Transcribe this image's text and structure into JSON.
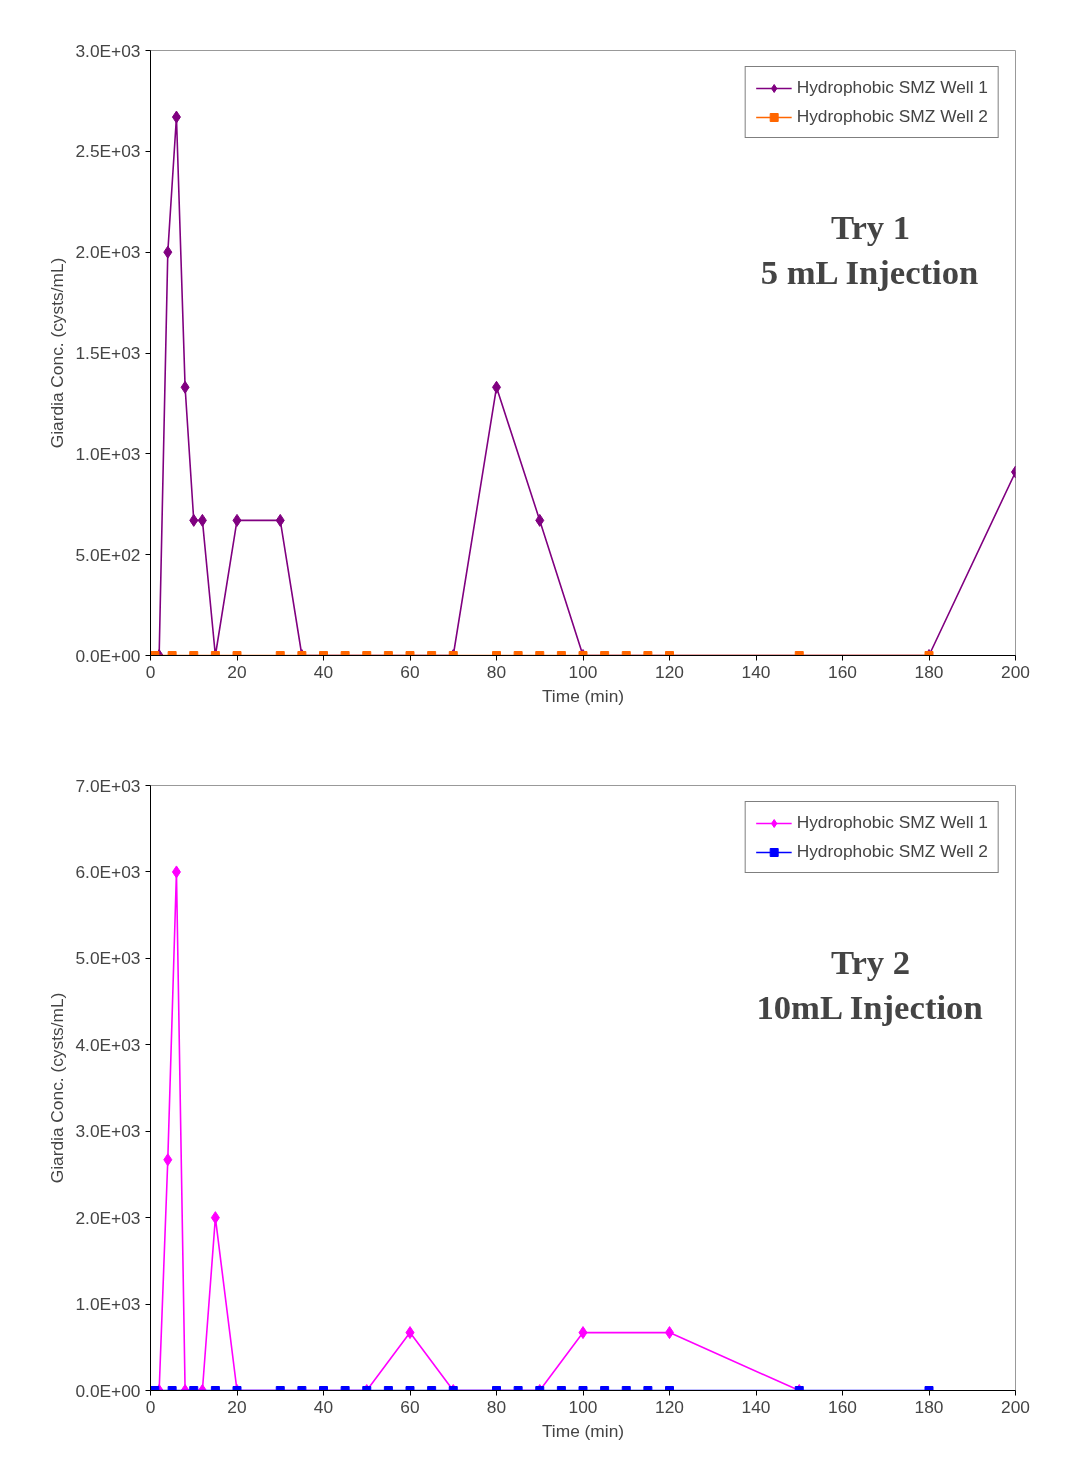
{
  "chart_data": [
    {
      "type": "line",
      "xlabel": "Time (min)",
      "ylabel": "Giardia Conc. (cysts/mL)",
      "annotations": [
        "Try 1",
        "5 mL Injection"
      ],
      "xlim": [
        0,
        200
      ],
      "xticks": [
        0,
        20,
        40,
        60,
        80,
        100,
        120,
        140,
        160,
        180,
        200
      ],
      "ylim": [
        0,
        3000
      ],
      "yticks": [
        {
          "value": 0,
          "label": "0.0E+00"
        },
        {
          "value": 500,
          "label": "5.0E+02"
        },
        {
          "value": 1000,
          "label": "1.0E+03"
        },
        {
          "value": 1500,
          "label": "1.5E+03"
        },
        {
          "value": 2000,
          "label": "2.0E+03"
        },
        {
          "value": 2500,
          "label": "2.5E+03"
        },
        {
          "value": 3000,
          "label": "3.0E+03"
        }
      ],
      "grid": false,
      "legend": "top right",
      "series": [
        {
          "name": "Hydrophobic SMZ Well 1",
          "color": "#800080",
          "marker": "diamond",
          "x": [
            2,
            4,
            6,
            8,
            10,
            12,
            15,
            20,
            30,
            35,
            70,
            80,
            90,
            100,
            180,
            200
          ],
          "values": [
            0,
            2000,
            2670,
            1330,
            670,
            670,
            0,
            670,
            670,
            0,
            0,
            1330,
            670,
            0,
            0,
            910
          ]
        },
        {
          "name": "Hydrophobic SMZ Well 2",
          "color": "#ff6600",
          "marker": "square",
          "x": [
            1,
            5,
            10,
            15,
            20,
            30,
            35,
            40,
            45,
            50,
            55,
            60,
            65,
            70,
            80,
            85,
            90,
            95,
            100,
            105,
            110,
            115,
            120,
            150,
            180
          ],
          "values": [
            0,
            0,
            0,
            0,
            0,
            0,
            0,
            0,
            0,
            0,
            0,
            0,
            0,
            0,
            0,
            0,
            0,
            0,
            0,
            0,
            0,
            0,
            0,
            0,
            0
          ]
        }
      ]
    },
    {
      "type": "line",
      "xlabel": "Time (min)",
      "ylabel": "Giardia Conc. (cysts/mL)",
      "annotations": [
        "Try 2",
        "10mL Injection"
      ],
      "xlim": [
        0,
        200
      ],
      "xticks": [
        0,
        20,
        40,
        60,
        80,
        100,
        120,
        140,
        160,
        180,
        200
      ],
      "ylim": [
        0,
        7000
      ],
      "yticks": [
        {
          "value": 0,
          "label": "0.0E+00"
        },
        {
          "value": 1000,
          "label": "1.0E+03"
        },
        {
          "value": 2000,
          "label": "2.0E+03"
        },
        {
          "value": 3000,
          "label": "3.0E+03"
        },
        {
          "value": 4000,
          "label": "4.0E+03"
        },
        {
          "value": 5000,
          "label": "5.0E+03"
        },
        {
          "value": 6000,
          "label": "6.0E+03"
        },
        {
          "value": 7000,
          "label": "7.0E+03"
        }
      ],
      "grid": false,
      "legend": "top right",
      "series": [
        {
          "name": "Hydrophobic SMZ Well 1",
          "color": "#ff00ff",
          "marker": "diamond",
          "x": [
            2,
            4,
            6,
            8,
            12,
            15,
            20,
            50,
            60,
            70,
            90,
            100,
            120,
            150
          ],
          "values": [
            0,
            2670,
            6000,
            0,
            0,
            2000,
            0,
            0,
            670,
            0,
            0,
            670,
            670,
            0
          ]
        },
        {
          "name": "Hydrophobic SMZ Well 2",
          "color": "#0000ff",
          "marker": "square",
          "x": [
            1,
            5,
            10,
            15,
            20,
            30,
            35,
            40,
            45,
            50,
            55,
            60,
            65,
            70,
            80,
            85,
            90,
            95,
            100,
            105,
            110,
            115,
            120,
            150,
            180
          ],
          "values": [
            0,
            0,
            0,
            0,
            0,
            0,
            0,
            0,
            0,
            0,
            0,
            0,
            0,
            0,
            0,
            0,
            0,
            0,
            0,
            0,
            0,
            0,
            0,
            0,
            0
          ]
        }
      ]
    }
  ]
}
